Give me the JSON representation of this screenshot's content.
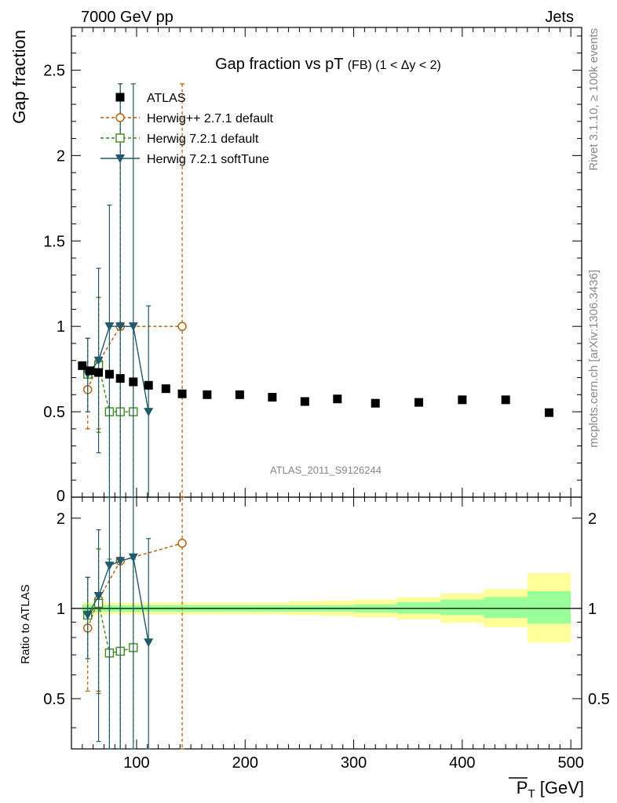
{
  "header": {
    "left": "7000 GeV pp",
    "right": "Jets"
  },
  "side_labels": {
    "rivet": "Rivet 3.1.10, ≥ 100k events",
    "mcplots": "mcplots.cern.ch [arXiv:1306.3436]"
  },
  "watermark": "ATLAS_2011_S9126244",
  "colors": {
    "atlas": "#000000",
    "herwigpp": "#b35900",
    "herwig721": "#3a8c1a",
    "softtune": "#1f5a6e",
    "band_inner": "#99ff99",
    "band_outer": "#ffff99"
  },
  "chart_data": [
    {
      "type": "scatter",
      "title_main": "Gap fraction vs pT",
      "title_sub": "(FB) (1 < Δy < 2)",
      "ylabel": "Gap fraction",
      "xlabel": "",
      "xlim": [
        40,
        510
      ],
      "ylim": [
        0,
        2.75
      ],
      "y_ticks": [
        "0.5",
        "1",
        "1.5",
        "2",
        "2.5"
      ],
      "y_ticks_values": [
        0.5,
        1,
        1.5,
        2,
        2.5
      ],
      "y_zero_label": "0",
      "legend_position": "top-left",
      "series": [
        {
          "name": "ATLAS",
          "marker": "square-filled",
          "x": [
            50,
            57,
            65,
            75,
            85,
            97,
            111,
            127,
            142,
            165,
            195,
            225,
            255,
            285,
            320,
            360,
            400,
            440,
            480
          ],
          "y": [
            0.77,
            0.74,
            0.73,
            0.72,
            0.695,
            0.675,
            0.655,
            0.635,
            0.605,
            0.6,
            0.6,
            0.585,
            0.56,
            0.575,
            0.55,
            0.555,
            0.57,
            0.57,
            0.495
          ]
        },
        {
          "name": "Herwig++ 2.7.1 default",
          "marker": "circle-open",
          "x": [
            55,
            65,
            85,
            142
          ],
          "y": [
            0.63,
            0.79,
            1.0,
            1.0
          ],
          "err_low": [
            0.4,
            0.4,
            0.0,
            0.0
          ],
          "err_high": [
            0.93,
            1.17,
            2.42,
            2.42
          ]
        },
        {
          "name": "Herwig 7.2.1 default",
          "marker": "square-open",
          "x": [
            55,
            65,
            75,
            85,
            97
          ],
          "y": [
            0.72,
            0.77,
            0.5,
            0.5,
            0.5
          ],
          "err_low": [
            0.5,
            0.38,
            0.0,
            0.0,
            0.0
          ],
          "err_high": [
            0.93,
            1.17,
            1.0,
            1.0,
            1.0
          ]
        },
        {
          "name": "Herwig 7.2.1 softTune",
          "marker": "triangle-down-filled",
          "x": [
            55,
            65,
            75,
            85,
            97,
            111
          ],
          "y": [
            0.72,
            0.8,
            1.0,
            1.0,
            1.0,
            0.5
          ],
          "err_low": [
            0.5,
            0.26,
            0.0,
            0.0,
            0.0,
            0.0
          ],
          "err_high": [
            0.93,
            1.34,
            1.71,
            2.42,
            2.42,
            1.12
          ]
        }
      ]
    },
    {
      "type": "scatter",
      "ylabel": "Ratio to ATLAS",
      "xlabel": "P_T [GeV]",
      "xlabel_main": "P",
      "xlabel_sub": "T",
      "xlabel_unit": " [GeV]",
      "xlim": [
        40,
        510
      ],
      "ylim": [
        0.34,
        2.35
      ],
      "log_scale_y": true,
      "y_ticks": [
        "0.5",
        "1",
        "2"
      ],
      "y_ticks_values": [
        0.5,
        1,
        2
      ],
      "x_ticks": [
        "100",
        "200",
        "300",
        "400",
        "500"
      ],
      "x_ticks_values": [
        100,
        200,
        300,
        400,
        500
      ],
      "bands": {
        "edges": [
          50,
          60,
          70,
          80,
          90,
          105,
          120,
          135,
          150,
          180,
          210,
          240,
          270,
          300,
          340,
          380,
          420,
          460,
          500
        ],
        "inner": [
          [
            0.97,
            1.03
          ],
          [
            0.975,
            1.025
          ],
          [
            0.975,
            1.025
          ],
          [
            0.975,
            1.025
          ],
          [
            0.975,
            1.025
          ],
          [
            0.975,
            1.025
          ],
          [
            0.975,
            1.025
          ],
          [
            0.975,
            1.025
          ],
          [
            0.975,
            1.025
          ],
          [
            0.975,
            1.025
          ],
          [
            0.975,
            1.025
          ],
          [
            0.975,
            1.025
          ],
          [
            0.975,
            1.025
          ],
          [
            0.97,
            1.03
          ],
          [
            0.96,
            1.05
          ],
          [
            0.95,
            1.07
          ],
          [
            0.93,
            1.09
          ],
          [
            0.89,
            1.14
          ]
        ],
        "outer": [
          [
            0.95,
            1.05
          ],
          [
            0.955,
            1.045
          ],
          [
            0.955,
            1.045
          ],
          [
            0.955,
            1.045
          ],
          [
            0.955,
            1.045
          ],
          [
            0.955,
            1.045
          ],
          [
            0.955,
            1.045
          ],
          [
            0.955,
            1.045
          ],
          [
            0.955,
            1.045
          ],
          [
            0.955,
            1.045
          ],
          [
            0.955,
            1.045
          ],
          [
            0.95,
            1.055
          ],
          [
            0.945,
            1.06
          ],
          [
            0.935,
            1.07
          ],
          [
            0.92,
            1.09
          ],
          [
            0.895,
            1.12
          ],
          [
            0.865,
            1.16
          ],
          [
            0.77,
            1.31
          ]
        ]
      },
      "series": [
        {
          "name": "Herwig++ 2.7.1 default",
          "marker": "circle-open",
          "x": [
            55,
            65,
            85,
            142
          ],
          "y": [
            0.86,
            1.07,
            1.44,
            1.65
          ],
          "err_low": [
            0.53,
            0.53,
            0.34,
            0.34
          ],
          "err_high": [
            1.27,
            1.58,
            2.4,
            2.4
          ]
        },
        {
          "name": "Herwig 7.2.1 default",
          "marker": "square-open",
          "x": [
            55,
            65,
            75,
            85,
            97
          ],
          "y": [
            0.95,
            1.04,
            0.71,
            0.72,
            0.74
          ],
          "err_low": [
            0.68,
            0.52,
            0.34,
            0.34,
            0.34
          ],
          "err_high": [
            1.27,
            1.58,
            1.46,
            1.46,
            1.46
          ]
        },
        {
          "name": "Herwig 7.2.1 softTune",
          "marker": "triangle-down-filled",
          "x": [
            55,
            65,
            75,
            85,
            97,
            111
          ],
          "y": [
            0.95,
            1.1,
            1.39,
            1.44,
            1.48,
            0.77
          ],
          "err_low": [
            0.68,
            0.36,
            0.34,
            0.34,
            0.34,
            0.34
          ],
          "err_high": [
            1.27,
            1.83,
            2.37,
            2.4,
            2.4,
            1.71
          ]
        }
      ]
    }
  ]
}
